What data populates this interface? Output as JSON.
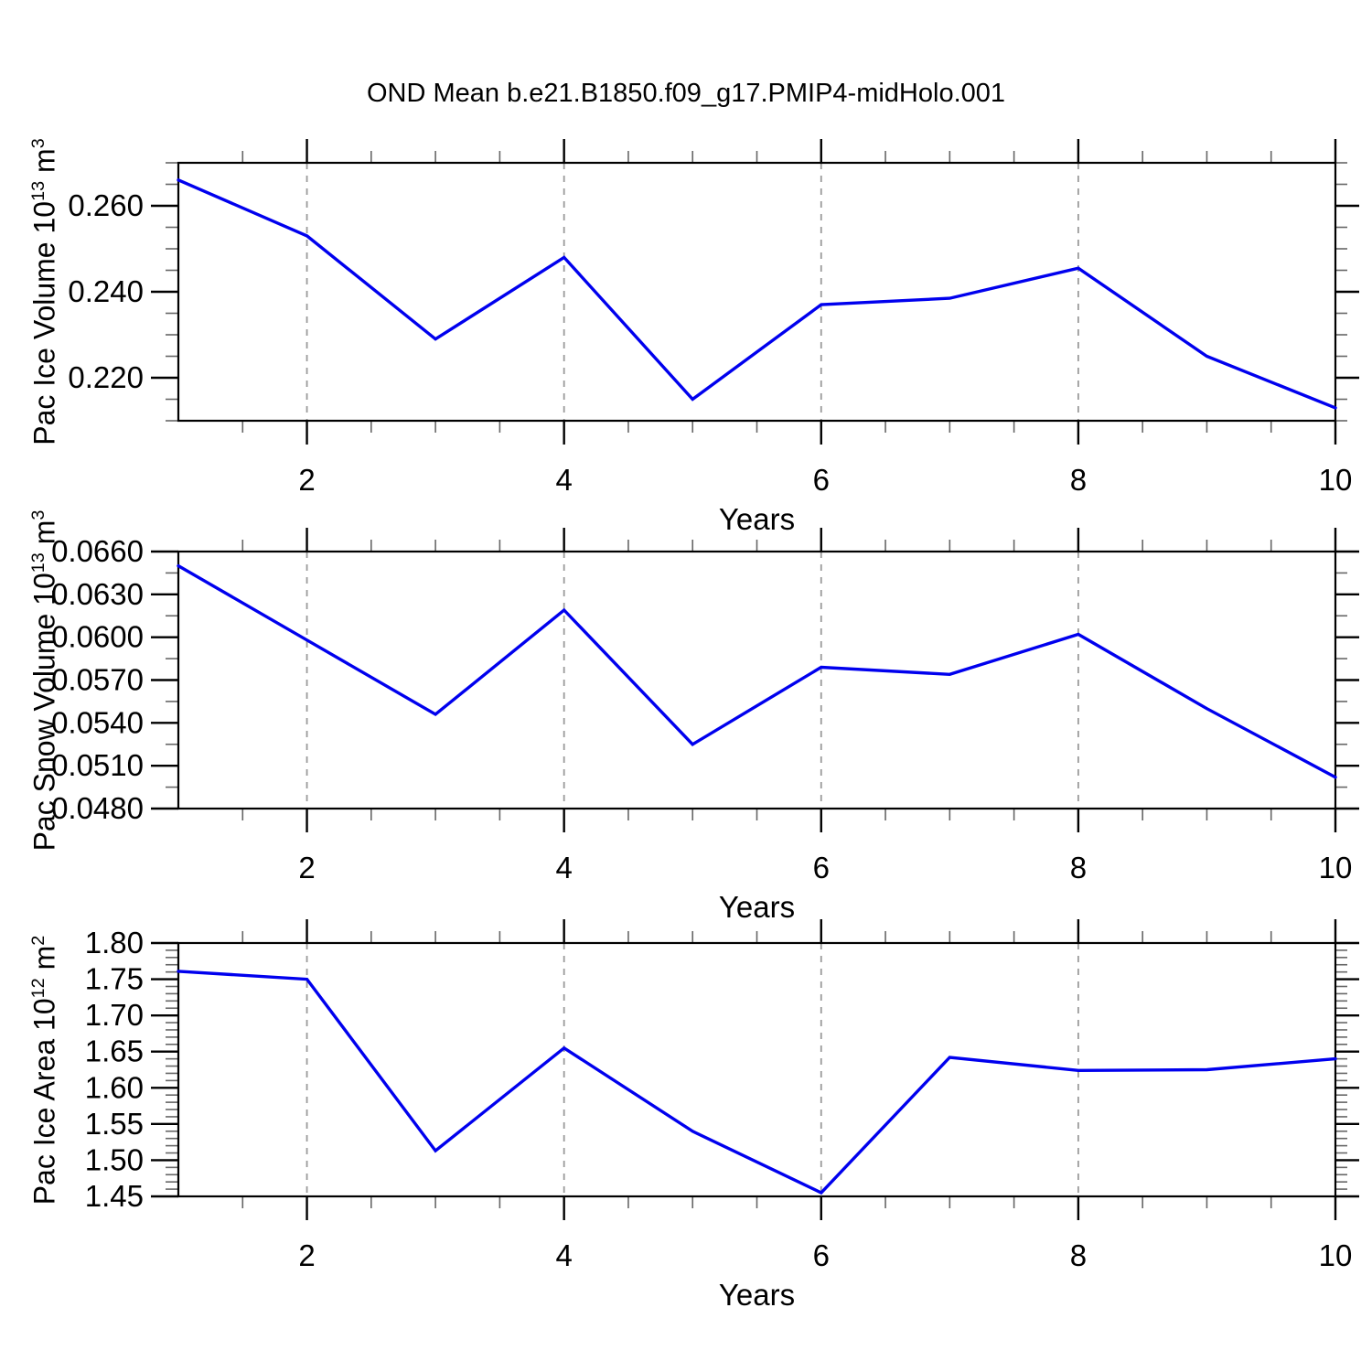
{
  "page": {
    "title": "OND Mean b.e21.B1850.f09_g17.PMIP4-midHolo.001",
    "background": "#ffffff"
  },
  "style": {
    "line_color": "#0000ee",
    "grid_color": "#9a9a9a",
    "frame_color": "#000000",
    "major_tick_color": "#000000",
    "minor_tick_color": "#666666",
    "text_color": "#000000"
  },
  "chart_data": [
    {
      "type": "line",
      "name": "pac-ice-volume",
      "ylabel": "Pac Ice Volume 10^13 m^3",
      "xlabel": "Years",
      "x": [
        1,
        2,
        3,
        4,
        5,
        6,
        7,
        8,
        9,
        10
      ],
      "values": [
        0.266,
        0.253,
        0.229,
        0.248,
        0.215,
        0.237,
        0.2385,
        0.2455,
        0.225,
        0.213
      ],
      "xlim": [
        1,
        10
      ],
      "ylim": [
        0.21,
        0.27
      ],
      "xticks": [
        2,
        4,
        6,
        8,
        10
      ],
      "xtick_labels": [
        "2",
        "4",
        "6",
        "8",
        "10"
      ],
      "xminor_step": 0.5,
      "yticks": [
        0.22,
        0.24,
        0.26
      ],
      "ytick_labels": [
        "0.220",
        "0.240",
        "0.260"
      ],
      "yminor_step": 0.005,
      "grid_x": [
        2,
        4,
        6,
        8
      ],
      "grid_style": "dashed",
      "legend": null
    },
    {
      "type": "line",
      "name": "pac-snow-volume",
      "ylabel": "Pac Snow Volume 10^13 m^3",
      "xlabel": "Years",
      "x": [
        1,
        2,
        3,
        4,
        5,
        6,
        7,
        8,
        9,
        10
      ],
      "values": [
        0.065,
        0.0598,
        0.0546,
        0.0619,
        0.0525,
        0.0579,
        0.0574,
        0.0602,
        0.055,
        0.0502
      ],
      "xlim": [
        1,
        10
      ],
      "ylim": [
        0.048,
        0.066
      ],
      "xticks": [
        2,
        4,
        6,
        8,
        10
      ],
      "xtick_labels": [
        "2",
        "4",
        "6",
        "8",
        "10"
      ],
      "xminor_step": 0.5,
      "yticks": [
        0.048,
        0.051,
        0.054,
        0.057,
        0.06,
        0.063,
        0.066
      ],
      "ytick_labels": [
        "0.0480",
        "0.0510",
        "0.0540",
        "0.0570",
        "0.0600",
        "0.0630",
        "0.0660"
      ],
      "yminor_step": 0.0015,
      "grid_x": [
        2,
        4,
        6,
        8
      ],
      "grid_style": "dashed",
      "legend": null
    },
    {
      "type": "line",
      "name": "pac-ice-area",
      "ylabel": "Pac Ice Area 10^12 m^2",
      "xlabel": "Years",
      "x": [
        1,
        2,
        3,
        4,
        5,
        6,
        7,
        8,
        9,
        10
      ],
      "values": [
        1.761,
        1.75,
        1.513,
        1.655,
        1.54,
        1.455,
        1.642,
        1.624,
        1.625,
        1.64
      ],
      "xlim": [
        1,
        10
      ],
      "ylim": [
        1.45,
        1.8
      ],
      "xticks": [
        2,
        4,
        6,
        8,
        10
      ],
      "xtick_labels": [
        "2",
        "4",
        "6",
        "8",
        "10"
      ],
      "xminor_step": 0.5,
      "yticks": [
        1.45,
        1.5,
        1.55,
        1.6,
        1.65,
        1.7,
        1.75,
        1.8
      ],
      "ytick_labels": [
        "1.45",
        "1.50",
        "1.55",
        "1.60",
        "1.65",
        "1.70",
        "1.75",
        "1.80"
      ],
      "yminor_step": 0.01,
      "grid_x": [
        2,
        4,
        6,
        8
      ],
      "grid_style": "dashed",
      "legend": null
    }
  ]
}
